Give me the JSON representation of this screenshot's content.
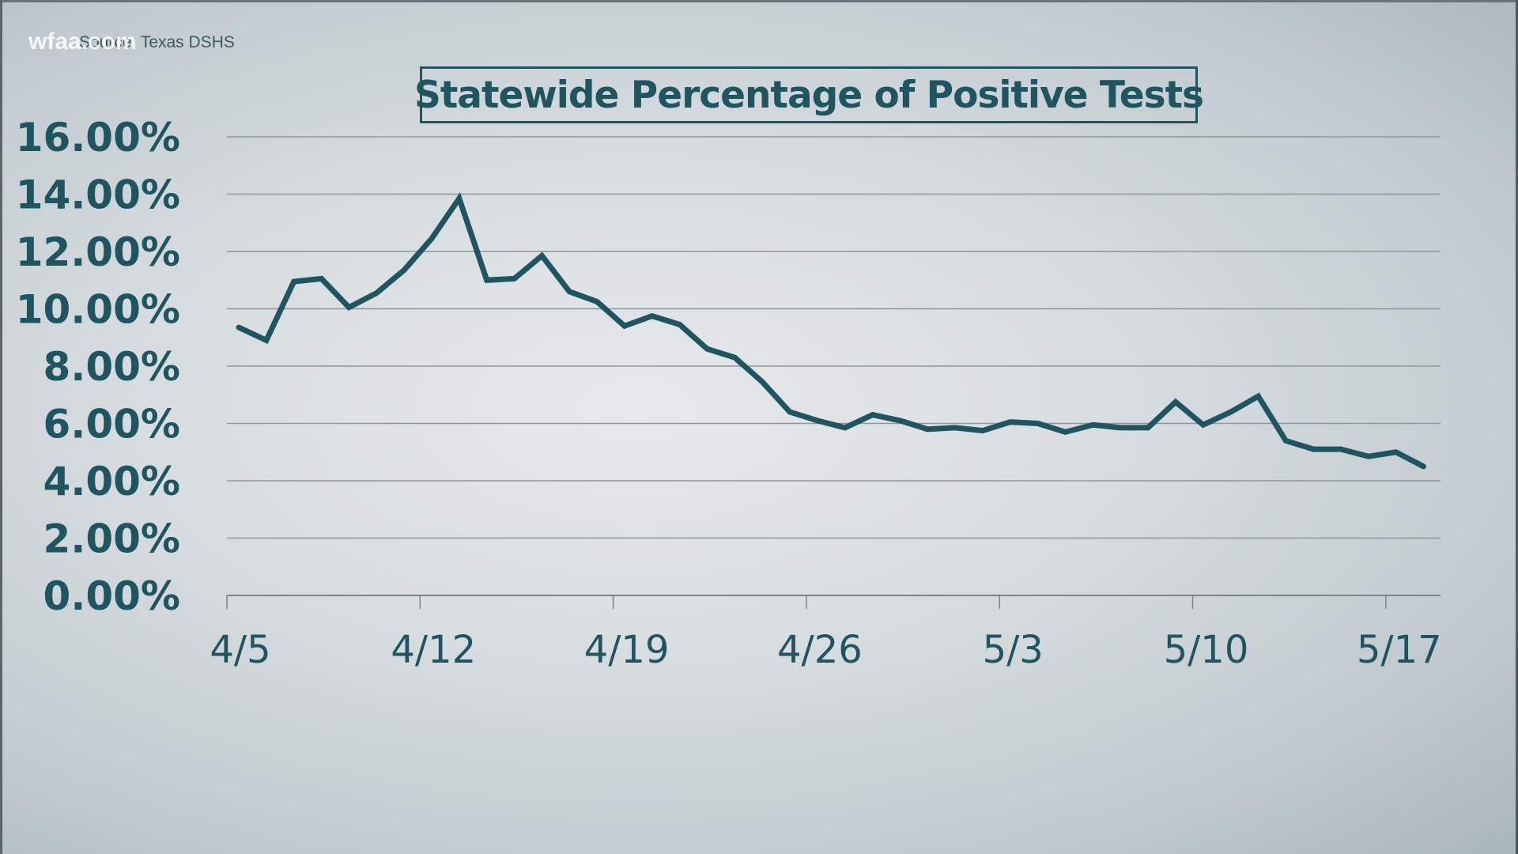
{
  "watermark": "wfaa.com",
  "source": "Source: Texas DSHS",
  "chart_data": {
    "type": "line",
    "title": "Statewide Percentage of Positive Tests",
    "xlabel": "",
    "ylabel": "",
    "ylim": [
      0,
      16
    ],
    "y_ticks": [
      "0.00%",
      "2.00%",
      "4.00%",
      "6.00%",
      "8.00%",
      "10.00%",
      "12.00%",
      "14.00%",
      "16.00%"
    ],
    "y_tick_values": [
      0,
      2,
      4,
      6,
      8,
      10,
      12,
      14,
      16
    ],
    "x_tick_labels": [
      "4/5",
      "4/12",
      "4/19",
      "4/26",
      "5/3",
      "5/10",
      "5/17"
    ],
    "x_tick_indices": [
      0,
      7,
      14,
      21,
      28,
      35,
      42
    ],
    "grid": true,
    "line_color": "#1e5560",
    "x": [
      "4/5",
      "4/6",
      "4/7",
      "4/8",
      "4/9",
      "4/10",
      "4/11",
      "4/12",
      "4/13",
      "4/14",
      "4/15",
      "4/16",
      "4/17",
      "4/18",
      "4/19",
      "4/20",
      "4/21",
      "4/22",
      "4/23",
      "4/24",
      "4/25",
      "4/26",
      "4/27",
      "4/28",
      "4/29",
      "4/30",
      "5/1",
      "5/2",
      "5/3",
      "5/4",
      "5/5",
      "5/6",
      "5/7",
      "5/8",
      "5/9",
      "5/10",
      "5/11",
      "5/12",
      "5/13",
      "5/14",
      "5/15",
      "5/16",
      "5/17",
      "5/18"
    ],
    "series": [
      {
        "name": "Percentage of Positive Tests",
        "values": [
          9.35,
          8.9,
          10.95,
          11.05,
          10.05,
          10.55,
          11.35,
          12.45,
          13.85,
          11.0,
          11.05,
          11.85,
          10.6,
          10.25,
          9.4,
          9.75,
          9.45,
          8.6,
          8.3,
          7.45,
          6.4,
          6.1,
          5.85,
          6.3,
          6.1,
          5.8,
          5.85,
          5.75,
          6.05,
          6.0,
          5.7,
          5.95,
          5.85,
          5.85,
          6.75,
          5.95,
          6.4,
          6.95,
          5.4,
          5.1,
          5.1,
          4.85,
          5.0,
          4.5
        ]
      }
    ]
  }
}
